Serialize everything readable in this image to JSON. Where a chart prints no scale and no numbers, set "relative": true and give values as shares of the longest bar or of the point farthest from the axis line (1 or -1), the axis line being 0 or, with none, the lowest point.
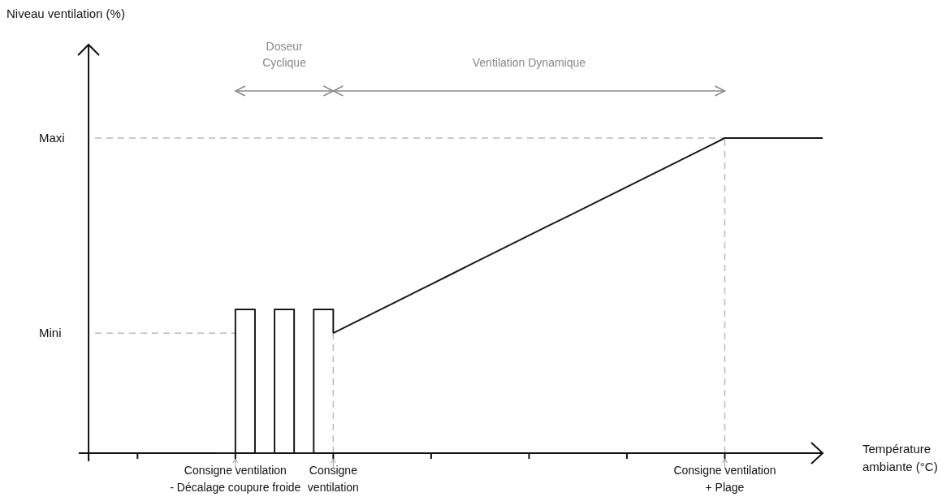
{
  "chart_data": {
    "type": "line",
    "relative": true,
    "xlabel": "Température\nambiante (°C)",
    "categories": [
      null,
      null,
      null,
      null,
      null,
      null,
      null,
      null,
      "Consigne ventilation\n- Décalage coupure froide",
      null,
      null,
      null,
      null,
      "Consigne\nventilation",
      null,
      null,
      null,
      null,
      null,
      null,
      null,
      null,
      null,
      null,
      null,
      null,
      null,
      null,
      null,
      null,
      null,
      null,
      null,
      "Consigne ventilation\n+ Plage",
      null,
      null,
      null,
      null,
      null
    ],
    "series": [
      {
        "type": "step",
        "color": "#1a1a1a",
        "values": [
          null,
          null,
          null,
          null,
          null,
          null,
          null,
          0,
          0.456,
          0,
          0.456,
          0,
          0.456,
          0.381,
          null,
          null,
          null,
          null,
          null,
          null,
          null,
          null,
          null,
          null,
          null,
          null,
          null,
          null,
          null,
          null,
          null,
          null,
          null,
          null,
          null,
          null,
          null,
          null,
          null
        ]
      },
      {
        "type": "line",
        "color": "#1a1a1a",
        "values": [
          null,
          null,
          null,
          null,
          null,
          null,
          null,
          null,
          null,
          null,
          null,
          null,
          null,
          0.381,
          0.412,
          0.443,
          0.474,
          0.505,
          0.536,
          0.567,
          0.598,
          0.629,
          0.66,
          0.691,
          0.722,
          0.752,
          0.783,
          0.814,
          0.845,
          0.876,
          0.907,
          0.938,
          0.969,
          1,
          1,
          1,
          1,
          1,
          1
        ]
      }
    ],
    "ref_lines": [
      {
        "axis": "y",
        "value": 0.381,
        "label": "Mini",
        "color": "#bbbbbb",
        "line_style": "dashed"
      },
      {
        "axis": "y",
        "value": 1,
        "label": "Maxi",
        "color": "#bbbbbb",
        "line_style": "dashed"
      },
      {
        "axis": "x",
        "value": "Consigne\nventilation",
        "label": null,
        "color": "#bbbbbb",
        "line_style": "dashed"
      },
      {
        "axis": "x",
        "value": "Consigne ventilation\n+ Plage",
        "label": null,
        "color": "#bbbbbb",
        "line_style": "dashed"
      }
    ],
    "annotations": [
      "Doseur\nCyclique",
      "Ventilation  Dynamique",
      "Niveau ventilation (%)"
    ],
    "tick_labels": "x",
    "grid": false,
    "marker": "none",
    "line_style": "solid"
  }
}
